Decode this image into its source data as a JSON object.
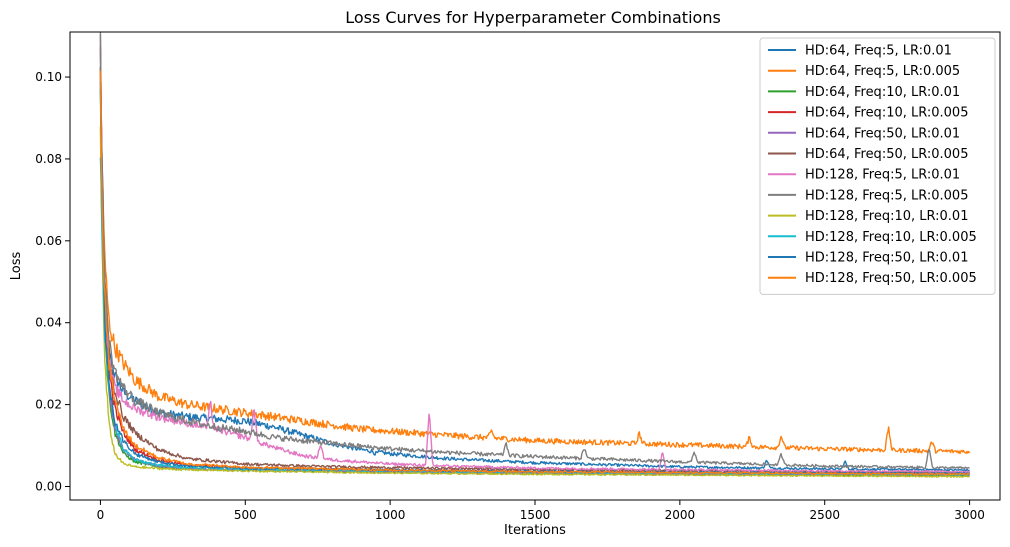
{
  "chart_data": {
    "type": "line",
    "title": "Loss Curves for Hyperparameter Combinations",
    "xlabel": "Iterations",
    "ylabel": "Loss",
    "xlim": [
      -105,
      3105
    ],
    "ylim": [
      -0.0033,
      0.111
    ],
    "xticks": [
      0,
      500,
      1000,
      1500,
      2000,
      2500,
      3000
    ],
    "xtick_labels": [
      "0",
      "500",
      "1000",
      "1500",
      "2000",
      "2500",
      "3000"
    ],
    "yticks": [
      0.0,
      0.02,
      0.04,
      0.06,
      0.08,
      0.1
    ],
    "ytick_labels": [
      "0.00",
      "0.02",
      "0.04",
      "0.06",
      "0.08",
      "0.10"
    ],
    "grid": false,
    "legend_position": "upper-right",
    "series": [
      {
        "name": "HD:64, Freq:5, LR:0.01",
        "color": "#1f77b4",
        "x": [
          0,
          5,
          15,
          30,
          50,
          80,
          120,
          200,
          300,
          400,
          500,
          600,
          700,
          800,
          900,
          1000,
          1200,
          1500,
          2000,
          2500,
          3000
        ],
        "y": [
          0.105,
          0.08,
          0.05,
          0.033,
          0.027,
          0.023,
          0.021,
          0.018,
          0.017,
          0.0165,
          0.016,
          0.0145,
          0.0125,
          0.0105,
          0.009,
          0.008,
          0.0068,
          0.0058,
          0.0048,
          0.0043,
          0.004
        ]
      },
      {
        "name": "HD:64, Freq:5, LR:0.005",
        "color": "#ff7f0e",
        "x": [
          0,
          5,
          15,
          30,
          50,
          80,
          120,
          200,
          300,
          400,
          500,
          600,
          700,
          800,
          900,
          1000,
          1200,
          1500,
          2000,
          2500,
          3000
        ],
        "y": [
          0.104,
          0.08,
          0.055,
          0.04,
          0.034,
          0.03,
          0.026,
          0.022,
          0.02,
          0.019,
          0.018,
          0.017,
          0.016,
          0.015,
          0.014,
          0.0135,
          0.0125,
          0.0112,
          0.0102,
          0.0092,
          0.0085
        ]
      },
      {
        "name": "HD:64, Freq:10, LR:0.01",
        "color": "#2ca02c",
        "x": [
          0,
          5,
          15,
          30,
          50,
          80,
          120,
          200,
          300,
          500,
          1000,
          1500,
          2000,
          2500,
          3000
        ],
        "y": [
          0.1,
          0.07,
          0.038,
          0.022,
          0.013,
          0.008,
          0.006,
          0.0048,
          0.0043,
          0.004,
          0.0035,
          0.0032,
          0.003,
          0.0028,
          0.0027
        ]
      },
      {
        "name": "HD:64, Freq:10, LR:0.005",
        "color": "#d62728",
        "x": [
          0,
          5,
          15,
          30,
          50,
          80,
          120,
          200,
          300,
          500,
          1000,
          1500,
          2000,
          2500,
          3000
        ],
        "y": [
          0.1,
          0.075,
          0.045,
          0.028,
          0.019,
          0.013,
          0.009,
          0.0065,
          0.0052,
          0.0045,
          0.004,
          0.0037,
          0.0035,
          0.0033,
          0.0032
        ]
      },
      {
        "name": "HD:64, Freq:50, LR:0.01",
        "color": "#9467bd",
        "x": [
          0,
          5,
          15,
          30,
          50,
          80,
          120,
          200,
          300,
          500,
          1000,
          1500,
          2000,
          2500,
          3000
        ],
        "y": [
          0.106,
          0.075,
          0.042,
          0.024,
          0.014,
          0.009,
          0.0065,
          0.005,
          0.0044,
          0.004,
          0.0036,
          0.0033,
          0.0031,
          0.003,
          0.0029
        ]
      },
      {
        "name": "HD:64, Freq:50, LR:0.005",
        "color": "#8c564b",
        "x": [
          0,
          5,
          15,
          30,
          50,
          80,
          120,
          200,
          300,
          500,
          700,
          1000,
          1500,
          2000,
          2500,
          3000
        ],
        "y": [
          0.1,
          0.078,
          0.05,
          0.032,
          0.023,
          0.017,
          0.013,
          0.009,
          0.0068,
          0.0055,
          0.005,
          0.0046,
          0.0042,
          0.0039,
          0.0036,
          0.0034
        ]
      },
      {
        "name": "HD:128, Freq:5, LR:0.01",
        "color": "#e377c2",
        "x": [
          0,
          5,
          15,
          30,
          50,
          80,
          120,
          200,
          300,
          400,
          500,
          600,
          700,
          800,
          900,
          1000,
          1200,
          1500,
          2000,
          2500,
          3000
        ],
        "y": [
          0.104,
          0.075,
          0.045,
          0.03,
          0.024,
          0.021,
          0.019,
          0.017,
          0.0155,
          0.014,
          0.012,
          0.0095,
          0.0075,
          0.0065,
          0.006,
          0.0055,
          0.005,
          0.0045,
          0.0041,
          0.0038,
          0.0036
        ]
      },
      {
        "name": "HD:128, Freq:5, LR:0.005",
        "color": "#7f7f7f",
        "x": [
          0,
          5,
          15,
          30,
          50,
          80,
          120,
          200,
          300,
          400,
          500,
          600,
          700,
          800,
          900,
          1000,
          1200,
          1500,
          2000,
          2500,
          3000
        ],
        "y": [
          0.105,
          0.08,
          0.05,
          0.035,
          0.028,
          0.024,
          0.021,
          0.018,
          0.016,
          0.0145,
          0.0135,
          0.012,
          0.0112,
          0.0105,
          0.0098,
          0.0092,
          0.0083,
          0.0073,
          0.006,
          0.005,
          0.0045
        ]
      },
      {
        "name": "HD:128, Freq:10, LR:0.01",
        "color": "#bcbd22",
        "x": [
          0,
          5,
          15,
          30,
          50,
          80,
          120,
          200,
          300,
          500,
          1000,
          1500,
          2000,
          2500,
          3000
        ],
        "y": [
          0.09,
          0.06,
          0.03,
          0.015,
          0.008,
          0.0055,
          0.0048,
          0.0044,
          0.0041,
          0.0038,
          0.0033,
          0.003,
          0.0028,
          0.0026,
          0.0024
        ]
      },
      {
        "name": "HD:128, Freq:10, LR:0.005",
        "color": "#17becf",
        "x": [
          0,
          5,
          15,
          30,
          50,
          80,
          120,
          200,
          300,
          500,
          1000,
          1500,
          2000,
          2500,
          3000
        ],
        "y": [
          0.085,
          0.06,
          0.038,
          0.025,
          0.015,
          0.009,
          0.0065,
          0.0052,
          0.0047,
          0.0043,
          0.0038,
          0.0035,
          0.0033,
          0.0031,
          0.003
        ]
      },
      {
        "name": "HD:128, Freq:50, LR:0.01",
        "color": "#1f77b4",
        "x": [
          0,
          5,
          15,
          30,
          50,
          80,
          120,
          200,
          300,
          500,
          1000,
          1500,
          2000,
          2500,
          3000
        ],
        "y": [
          0.1,
          0.07,
          0.04,
          0.025,
          0.016,
          0.011,
          0.008,
          0.006,
          0.005,
          0.0045,
          0.004,
          0.0037,
          0.0035,
          0.0033,
          0.0032
        ]
      },
      {
        "name": "HD:128, Freq:50, LR:0.005",
        "color": "#ff7f0e",
        "x": [
          0,
          5,
          15,
          30,
          50,
          80,
          120,
          200,
          300,
          500,
          1000,
          1500,
          2000,
          2500,
          3000
        ],
        "y": [
          0.098,
          0.07,
          0.045,
          0.03,
          0.021,
          0.014,
          0.01,
          0.007,
          0.0055,
          0.0047,
          0.004,
          0.0036,
          0.0034,
          0.0032,
          0.003
        ]
      }
    ],
    "annotations": [
      {
        "series": "HD:128, Freq:5, LR:0.01",
        "x": 380,
        "y": 0.0205
      },
      {
        "series": "HD:128, Freq:5, LR:0.01",
        "x": 530,
        "y": 0.0195
      },
      {
        "series": "HD:128, Freq:5, LR:0.01",
        "x": 760,
        "y": 0.0105
      },
      {
        "series": "HD:128, Freq:5, LR:0.01",
        "x": 1135,
        "y": 0.0185
      },
      {
        "series": "HD:128, Freq:5, LR:0.01",
        "x": 1940,
        "y": 0.0085
      },
      {
        "series": "HD:64, Freq:5, LR:0.005",
        "x": 1350,
        "y": 0.0135
      },
      {
        "series": "HD:64, Freq:5, LR:0.005",
        "x": 1860,
        "y": 0.013
      },
      {
        "series": "HD:64, Freq:5, LR:0.005",
        "x": 2240,
        "y": 0.012
      },
      {
        "series": "HD:64, Freq:5, LR:0.005",
        "x": 2350,
        "y": 0.0125
      },
      {
        "series": "HD:64, Freq:5, LR:0.005",
        "x": 2720,
        "y": 0.0145
      },
      {
        "series": "HD:64, Freq:5, LR:0.005",
        "x": 2870,
        "y": 0.011
      },
      {
        "series": "HD:128, Freq:5, LR:0.005",
        "x": 1400,
        "y": 0.0105
      },
      {
        "series": "HD:128, Freq:5, LR:0.005",
        "x": 1670,
        "y": 0.0095
      },
      {
        "series": "HD:128, Freq:5, LR:0.005",
        "x": 2050,
        "y": 0.0085
      },
      {
        "series": "HD:128, Freq:5, LR:0.005",
        "x": 2350,
        "y": 0.008
      },
      {
        "series": "HD:128, Freq:5, LR:0.005",
        "x": 2860,
        "y": 0.0095
      },
      {
        "series": "HD:64, Freq:5, LR:0.01",
        "x": 950,
        "y": 0.008
      },
      {
        "series": "HD:64, Freq:5, LR:0.01",
        "x": 2300,
        "y": 0.0065
      },
      {
        "series": "HD:64, Freq:5, LR:0.01",
        "x": 2570,
        "y": 0.0062
      }
    ]
  }
}
